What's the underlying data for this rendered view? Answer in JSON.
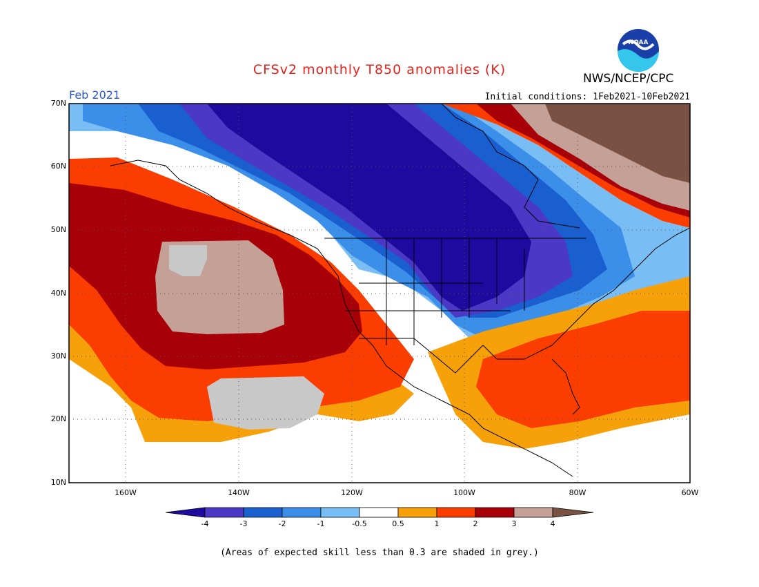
{
  "header": {
    "title": "CFSv2 monthly T850 anomalies (K)",
    "agency": "NWS/NCEP/CPC",
    "month": "Feb 2021",
    "initial_conditions": "Initial conditions: 1Feb2021-10Feb2021",
    "logo_text": "NOAA"
  },
  "map": {
    "lat_labels": [
      "70N",
      "60N",
      "50N",
      "40N",
      "30N",
      "20N",
      "10N"
    ],
    "lon_labels": [
      "160W",
      "140W",
      "120W",
      "100W",
      "80W",
      "60W"
    ],
    "lat_range": [
      10,
      70
    ],
    "lon_range": [
      -170,
      -60
    ]
  },
  "colorbar": {
    "tick_labels": [
      "-4",
      "-3",
      "-2",
      "-1",
      "-0.5",
      "0.5",
      "1",
      "2",
      "3",
      "4"
    ],
    "colors": [
      "#1e0a9e",
      "#4b38c6",
      "#1a5fd0",
      "#3c8fe8",
      "#79bdf5",
      "#ffffff",
      "#f7a10a",
      "#fb3d00",
      "#a80008",
      "#c4a097",
      "#7a5244"
    ]
  },
  "footnote": "(Areas of expected skill less than 0.3 are shaded in grey.)"
}
